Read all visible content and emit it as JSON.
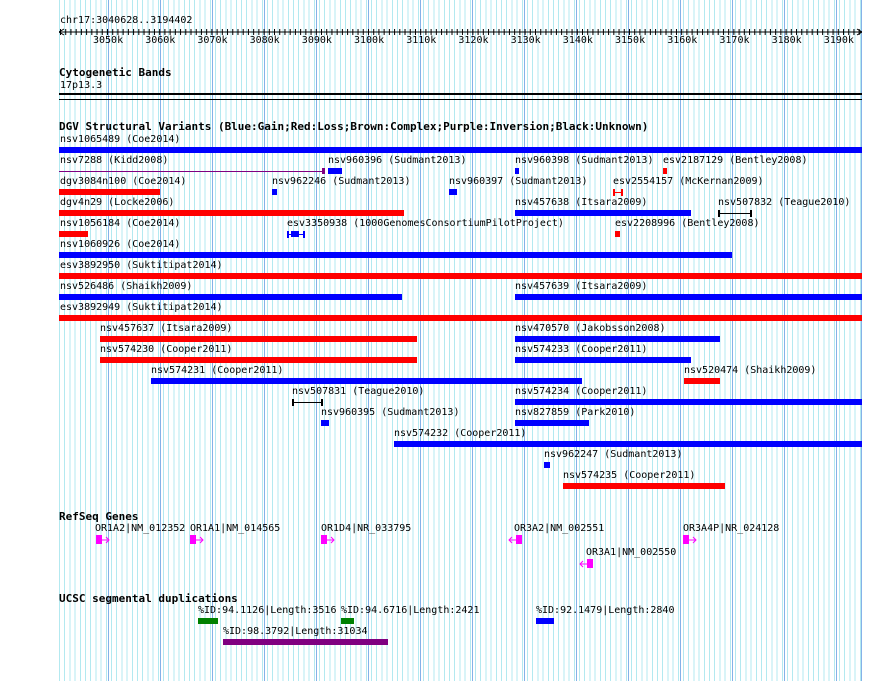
{
  "ruler": {
    "location": "chr17:3040628..3194402",
    "ticks": [
      "3050k",
      "3060k",
      "3070k",
      "3080k",
      "3090k",
      "3100k",
      "3110k",
      "3120k",
      "3130k",
      "3140k",
      "3150k",
      "3160k",
      "3170k",
      "3180k",
      "3190k"
    ]
  },
  "cytobands": {
    "title": "Cytogenetic Bands",
    "band": "17p13.3"
  },
  "dgv": {
    "title": "DGV Structural Variants (Blue:Gain;Red:Loss;Brown:Complex;Purple:Inversion;Black:Unknown)",
    "colors": {
      "gain": "#0000ff",
      "loss": "#ff0000",
      "inversion": "#800080",
      "unknown": "#000000"
    },
    "features": [
      {
        "label": "nsv1065489 (Coe2014)",
        "type": "gain"
      },
      {
        "label": "nsv7288 (Kidd2008)",
        "type": "inversion"
      },
      {
        "label": "nsv960396 (Sudmant2013)",
        "type": "gain"
      },
      {
        "label": "nsv960398 (Sudmant2013)",
        "type": "gain"
      },
      {
        "label": "esv2187129 (Bentley2008)",
        "type": "loss"
      },
      {
        "label": "dgv3084n100 (Coe2014)",
        "type": "loss"
      },
      {
        "label": "nsv962246 (Sudmant2013)",
        "type": "gain"
      },
      {
        "label": "nsv960397 (Sudmant2013)",
        "type": "gain"
      },
      {
        "label": "esv2554157 (McKernan2009)",
        "type": "loss"
      },
      {
        "label": "dgv4n29 (Locke2006)",
        "type": "loss"
      },
      {
        "label": "nsv457638 (Itsara2009)",
        "type": "gain"
      },
      {
        "label": "nsv507832 (Teague2010)",
        "type": "unknown"
      },
      {
        "label": "nsv1056184 (Coe2014)",
        "type": "loss"
      },
      {
        "label": "esv3350938 (1000GenomesConsortiumPilotProject)",
        "type": "gain"
      },
      {
        "label": "esv2208996 (Bentley2008)",
        "type": "loss"
      },
      {
        "label": "nsv1060926 (Coe2014)",
        "type": "gain"
      },
      {
        "label": "esv3892950 (Suktitipat2014)",
        "type": "loss"
      },
      {
        "label": "nsv526486 (Shaikh2009)",
        "type": "gain"
      },
      {
        "label": "nsv457639 (Itsara2009)",
        "type": "gain"
      },
      {
        "label": "esv3892949 (Suktitipat2014)",
        "type": "loss"
      },
      {
        "label": "nsv457637 (Itsara2009)",
        "type": "loss"
      },
      {
        "label": "nsv470570 (Jakobsson2008)",
        "type": "gain"
      },
      {
        "label": "nsv574230 (Cooper2011)",
        "type": "loss"
      },
      {
        "label": "nsv574233 (Cooper2011)",
        "type": "gain"
      },
      {
        "label": "nsv574231 (Cooper2011)",
        "type": "gain"
      },
      {
        "label": "nsv520474 (Shaikh2009)",
        "type": "loss"
      },
      {
        "label": "nsv507831 (Teague2010)",
        "type": "unknown"
      },
      {
        "label": "nsv574234 (Cooper2011)",
        "type": "gain"
      },
      {
        "label": "nsv960395 (Sudmant2013)",
        "type": "gain"
      },
      {
        "label": "nsv827859 (Park2010)",
        "type": "gain"
      },
      {
        "label": "nsv574232 (Cooper2011)",
        "type": "gain"
      },
      {
        "label": "nsv962247 (Sudmant2013)",
        "type": "gain"
      },
      {
        "label": "nsv574235 (Cooper2011)",
        "type": "loss"
      }
    ]
  },
  "refseq": {
    "title": "RefSeq Genes",
    "color": "#ff00ff",
    "genes": [
      {
        "label": "OR1A2|NM_012352",
        "strand": "+"
      },
      {
        "label": "OR1A1|NM_014565",
        "strand": "+"
      },
      {
        "label": "OR1D4|NR_033795",
        "strand": "+"
      },
      {
        "label": "OR3A2|NM_002551",
        "strand": "-"
      },
      {
        "label": "OR3A4P|NR_024128",
        "strand": "+"
      },
      {
        "label": "OR3A1|NM_002550",
        "strand": "-"
      }
    ]
  },
  "segdups": {
    "title": "UCSC segmental duplications",
    "features": [
      {
        "label": "%ID:94.1126|Length:3516",
        "color": "#008000"
      },
      {
        "label": "%ID:94.6716|Length:2421",
        "color": "#008000"
      },
      {
        "label": "%ID:92.1479|Length:2840",
        "color": "#0000ff"
      },
      {
        "label": "%ID:98.3792|Length:31034",
        "color": "#800080"
      }
    ]
  }
}
